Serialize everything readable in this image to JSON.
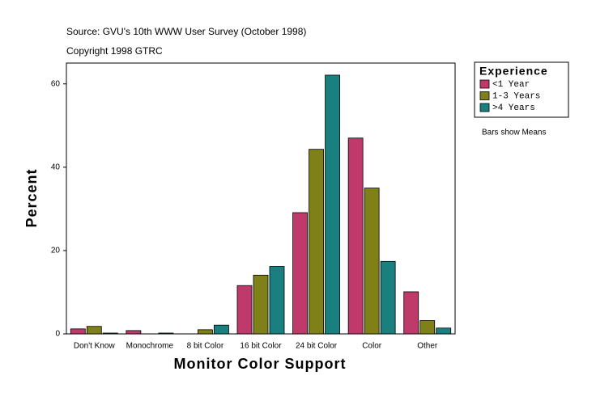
{
  "chart_data": {
    "type": "bar",
    "title": "Source: GVU's 10th WWW User Survey (October 1998)",
    "subtitle": "Copyright 1998 GTRC",
    "annotation": "Bars show Means",
    "x_label": "Monitor Color Support",
    "y_label": "Percent",
    "legend_title": "Experience",
    "categories": [
      "Don't Know",
      "Monochrome",
      "8 bit Color",
      "16 bit Color",
      "24 bit Color",
      "Color",
      "Other"
    ],
    "series": [
      {
        "name": "<1 Year",
        "color": "#c0396b",
        "values": [
          1.2,
          0.8,
          0,
          11.6,
          29.1,
          47.0,
          10.1
        ]
      },
      {
        "name": "1-3 Years",
        "color": "#808019",
        "values": [
          1.8,
          0,
          1.0,
          14.1,
          44.3,
          35.0,
          3.2
        ]
      },
      {
        "name": ">4 Years",
        "color": "#197f7f",
        "values": [
          0.2,
          0.2,
          2.1,
          16.2,
          62.1,
          17.4,
          1.4
        ]
      }
    ],
    "ylim": [
      0,
      65
    ],
    "yticks": [
      0,
      20,
      40,
      60
    ],
    "grid": false
  }
}
